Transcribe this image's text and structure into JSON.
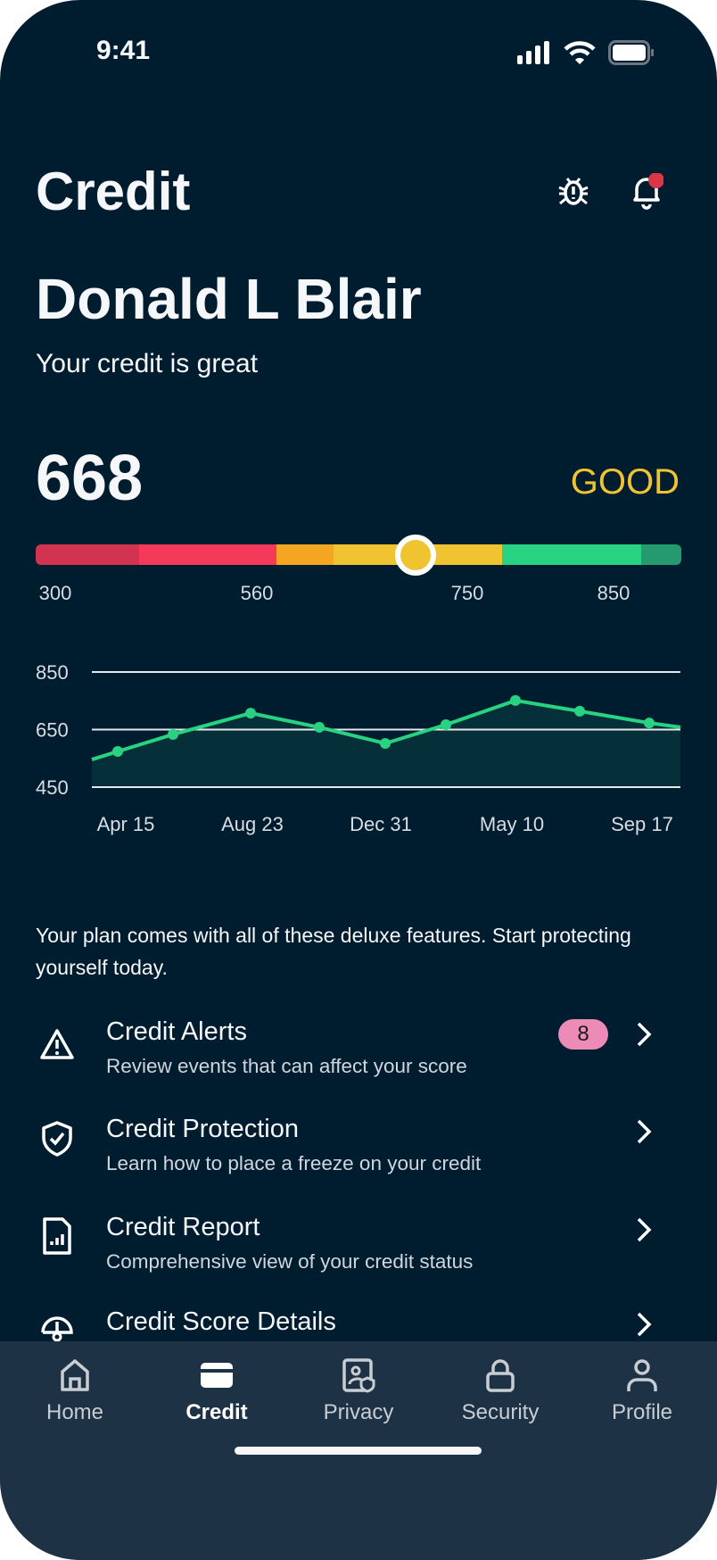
{
  "status_bar": {
    "time": "9:41",
    "icons": [
      "signal-icon",
      "wifi-icon",
      "battery-icon"
    ]
  },
  "header": {
    "title": "Credit",
    "icons": [
      "bug-icon",
      "bell-icon"
    ],
    "notification_dot_color": "#dc3545"
  },
  "user": {
    "name": "Donald L Blair",
    "subtitle": "Your credit is great"
  },
  "score": {
    "value": "668",
    "rating": "GOOD",
    "rating_color": "#f0c330",
    "scale_ticks": [
      "300",
      "560",
      "750",
      "850"
    ],
    "segments_colors": [
      "#d2344f",
      "#f5395a",
      "#f4a623",
      "#f0c330",
      "#27d280",
      "#259a6e"
    ]
  },
  "chart_data": {
    "type": "area",
    "yticks": [
      "850",
      "650",
      "450"
    ],
    "ylim": [
      450,
      850
    ],
    "x_labels": [
      "Apr 15",
      "Aug 23",
      "Dec 31",
      "May 10",
      "Sep 17"
    ],
    "values": [
      546,
      574,
      633,
      707,
      658,
      602,
      667,
      751,
      714,
      673,
      658
    ],
    "line_color": "#27d280",
    "fill_color": "#05303a",
    "grid": true
  },
  "features": {
    "intro": "Your plan comes with all of these deluxe features. Start protecting yourself today.",
    "items": [
      {
        "icon": "warning-icon",
        "title": "Credit Alerts",
        "subtitle": "Review events that can affect your score",
        "badge": "8"
      },
      {
        "icon": "shield-check-icon",
        "title": "Credit Protection",
        "subtitle": "Learn how to place a freeze on your credit"
      },
      {
        "icon": "report-icon",
        "title": "Credit Report",
        "subtitle": "Comprehensive view of your credit status"
      },
      {
        "icon": "gauge-icon",
        "title": "Credit Score Details"
      }
    ]
  },
  "tabs": [
    {
      "label": "Home",
      "icon": "home-icon"
    },
    {
      "label": "Credit",
      "icon": "credit-card-icon",
      "active": true
    },
    {
      "label": "Privacy",
      "icon": "privacy-icon"
    },
    {
      "label": "Security",
      "icon": "lock-icon"
    },
    {
      "label": "Profile",
      "icon": "profile-icon"
    }
  ]
}
